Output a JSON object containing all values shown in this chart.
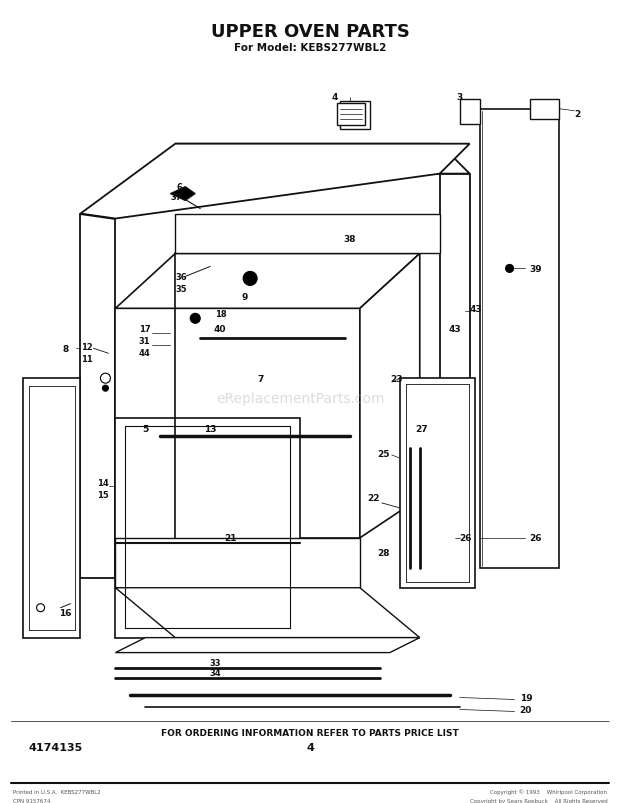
{
  "title": "UPPER OVEN PARTS",
  "subtitle": "For Model: KEBS277WBL2",
  "bottom_text": "FOR ORDERING INFORMATION REFER TO PARTS PRICE LIST",
  "part_number": "4174135",
  "page_number": "4",
  "footer_left_line1": "Printed in U.S.A.  KEBS277WBL2",
  "footer_left_line2": "CPN 9157674",
  "footer_right_line1": "Copyright © 1993    Whirlpool Corporation",
  "footer_right_line2": "Copyright by Sears Roebuck    All Rights Reserved",
  "bg_color": "#ffffff",
  "text_color": "#111111",
  "watermark": "eReplacementParts.com"
}
